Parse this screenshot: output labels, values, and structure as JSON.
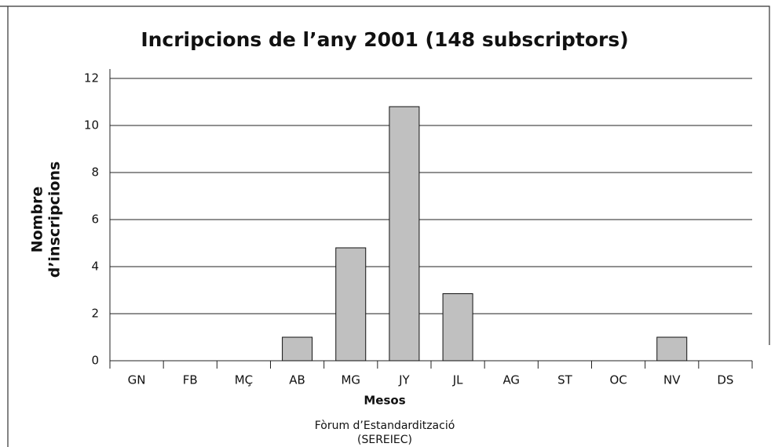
{
  "chart_data": {
    "type": "bar",
    "title": "Incripcions de l’any 2001 (148 subscriptors)",
    "y_label": [
      "Nombre",
      "d’inscripcions"
    ],
    "x_label": "Mesos",
    "source": [
      "Fòrum d’Estandardització",
      "(SEREIEC)"
    ],
    "categories": [
      "GN",
      "FB",
      "MÇ",
      "AB",
      "MG",
      "JY",
      "JL",
      "AG",
      "ST",
      "OC",
      "NV",
      "DS"
    ],
    "values": [
      0,
      0,
      0,
      1,
      4.8,
      10.8,
      2.85,
      0,
      0,
      0,
      1,
      0
    ],
    "color": "#c0c0c0",
    "ylim": [
      0,
      12
    ],
    "yticks": [
      0,
      2,
      4,
      6,
      8,
      10,
      12
    ],
    "grid": true
  }
}
